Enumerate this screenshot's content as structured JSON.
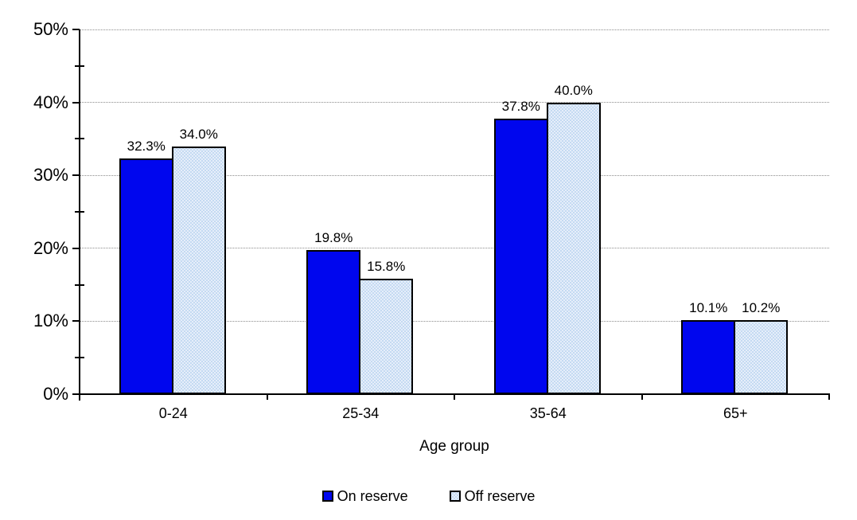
{
  "chart_data": {
    "type": "bar",
    "title": "",
    "categories": [
      "0-24",
      "25-34",
      "35-64",
      "65+"
    ],
    "series": [
      {
        "name": "On reserve",
        "values": [
          32.3,
          19.8,
          37.8,
          10.1
        ],
        "labels": [
          "32.3%",
          "19.8%",
          "37.8%",
          "10.1%"
        ],
        "color": "#0006ee",
        "pattern": "solid"
      },
      {
        "name": "Off reserve",
        "values": [
          34.0,
          15.8,
          40.0,
          10.2
        ],
        "labels": [
          "34.0%",
          "15.8%",
          "40.0%",
          "10.2%"
        ],
        "color": "#e6eefa",
        "pattern": "dots",
        "dot_color": "#b9d4f0"
      }
    ],
    "xlabel": "Age group",
    "ylabel": "",
    "ylim": [
      0,
      50
    ],
    "y_major_step": 10,
    "y_minor_step": 5,
    "y_ticks": [
      "0%",
      "10%",
      "20%",
      "30%",
      "40%",
      "50%"
    ],
    "grid": "horizontal dotted at major ticks",
    "legend_position": "bottom",
    "axis_color": "#000000",
    "grid_color": "#8c8c8c"
  }
}
